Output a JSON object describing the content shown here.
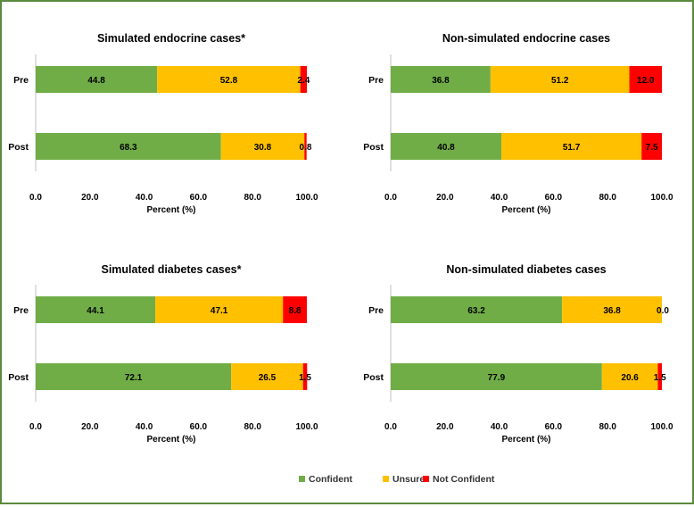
{
  "colors": {
    "confident": "#70ad47",
    "unsure": "#ffc000",
    "not_confident": "#ff0000",
    "border": "#5a8a3c"
  },
  "legend": [
    {
      "key": "confident",
      "label": "Confident"
    },
    {
      "key": "unsure",
      "label": "Unsure"
    },
    {
      "key": "not_confident",
      "label": "Not Confident"
    }
  ],
  "chart_data": [
    {
      "type": "bar",
      "orientation": "horizontal-stacked",
      "title": "Simulated endocrine cases*",
      "categories": [
        "Pre",
        "Post"
      ],
      "xlabel": "Percent (%)",
      "xlim": [
        0,
        100
      ],
      "xticks": [
        "0.0",
        "20.0",
        "40.0",
        "60.0",
        "80.0",
        "100.0"
      ],
      "series": [
        {
          "name": "Confident",
          "key": "confident",
          "values": [
            44.8,
            68.3
          ],
          "labels": [
            "44.8",
            "68.3"
          ]
        },
        {
          "name": "Unsure",
          "key": "unsure",
          "values": [
            52.8,
            30.8
          ],
          "labels": [
            "52.8",
            "30.8"
          ]
        },
        {
          "name": "Not Confident",
          "key": "not_confident",
          "values": [
            2.4,
            0.8
          ],
          "labels": [
            "2.4",
            "0.8"
          ]
        }
      ]
    },
    {
      "type": "bar",
      "orientation": "horizontal-stacked",
      "title": "Non-simulated endocrine cases",
      "categories": [
        "Pre",
        "Post"
      ],
      "xlabel": "Percent (%)",
      "xlim": [
        0,
        100
      ],
      "xticks": [
        "0.0",
        "20.0",
        "40.0",
        "60.0",
        "80.0",
        "100.0"
      ],
      "series": [
        {
          "name": "Confident",
          "key": "confident",
          "values": [
            36.8,
            40.8
          ],
          "labels": [
            "36.8",
            "40.8"
          ]
        },
        {
          "name": "Unsure",
          "key": "unsure",
          "values": [
            51.2,
            51.7
          ],
          "labels": [
            "51.2",
            "51.7"
          ]
        },
        {
          "name": "Not Confident",
          "key": "not_confident",
          "values": [
            12.0,
            7.5
          ],
          "labels": [
            "12.0",
            "7.5"
          ]
        }
      ]
    },
    {
      "type": "bar",
      "orientation": "horizontal-stacked",
      "title": "Simulated diabetes cases*",
      "categories": [
        "Pre",
        "Post"
      ],
      "xlabel": "Percent (%)",
      "xlim": [
        0,
        100
      ],
      "xticks": [
        "0.0",
        "20.0",
        "40.0",
        "60.0",
        "80.0",
        "100.0"
      ],
      "series": [
        {
          "name": "Confident",
          "key": "confident",
          "values": [
            44.1,
            72.1
          ],
          "labels": [
            "44.1",
            "72.1"
          ]
        },
        {
          "name": "Unsure",
          "key": "unsure",
          "values": [
            47.1,
            26.5
          ],
          "labels": [
            "47.1",
            "26.5"
          ]
        },
        {
          "name": "Not Confident",
          "key": "not_confident",
          "values": [
            8.8,
            1.5
          ],
          "labels": [
            "8.8",
            "1.5"
          ]
        }
      ]
    },
    {
      "type": "bar",
      "orientation": "horizontal-stacked",
      "title": "Non-simulated diabetes cases",
      "categories": [
        "Pre",
        "Post"
      ],
      "xlabel": "Percent (%)",
      "xlim": [
        0,
        100
      ],
      "xticks": [
        "0.0",
        "20.0",
        "40.0",
        "60.0",
        "80.0",
        "100.0"
      ],
      "series": [
        {
          "name": "Confident",
          "key": "confident",
          "values": [
            63.2,
            77.9
          ],
          "labels": [
            "63.2",
            "77.9"
          ]
        },
        {
          "name": "Unsure",
          "key": "unsure",
          "values": [
            36.8,
            20.6
          ],
          "labels": [
            "36.8",
            "20.6"
          ]
        },
        {
          "name": "Not Confident",
          "key": "not_confident",
          "values": [
            0.0,
            1.5
          ],
          "labels": [
            "0.0",
            "1.5"
          ]
        }
      ]
    }
  ]
}
